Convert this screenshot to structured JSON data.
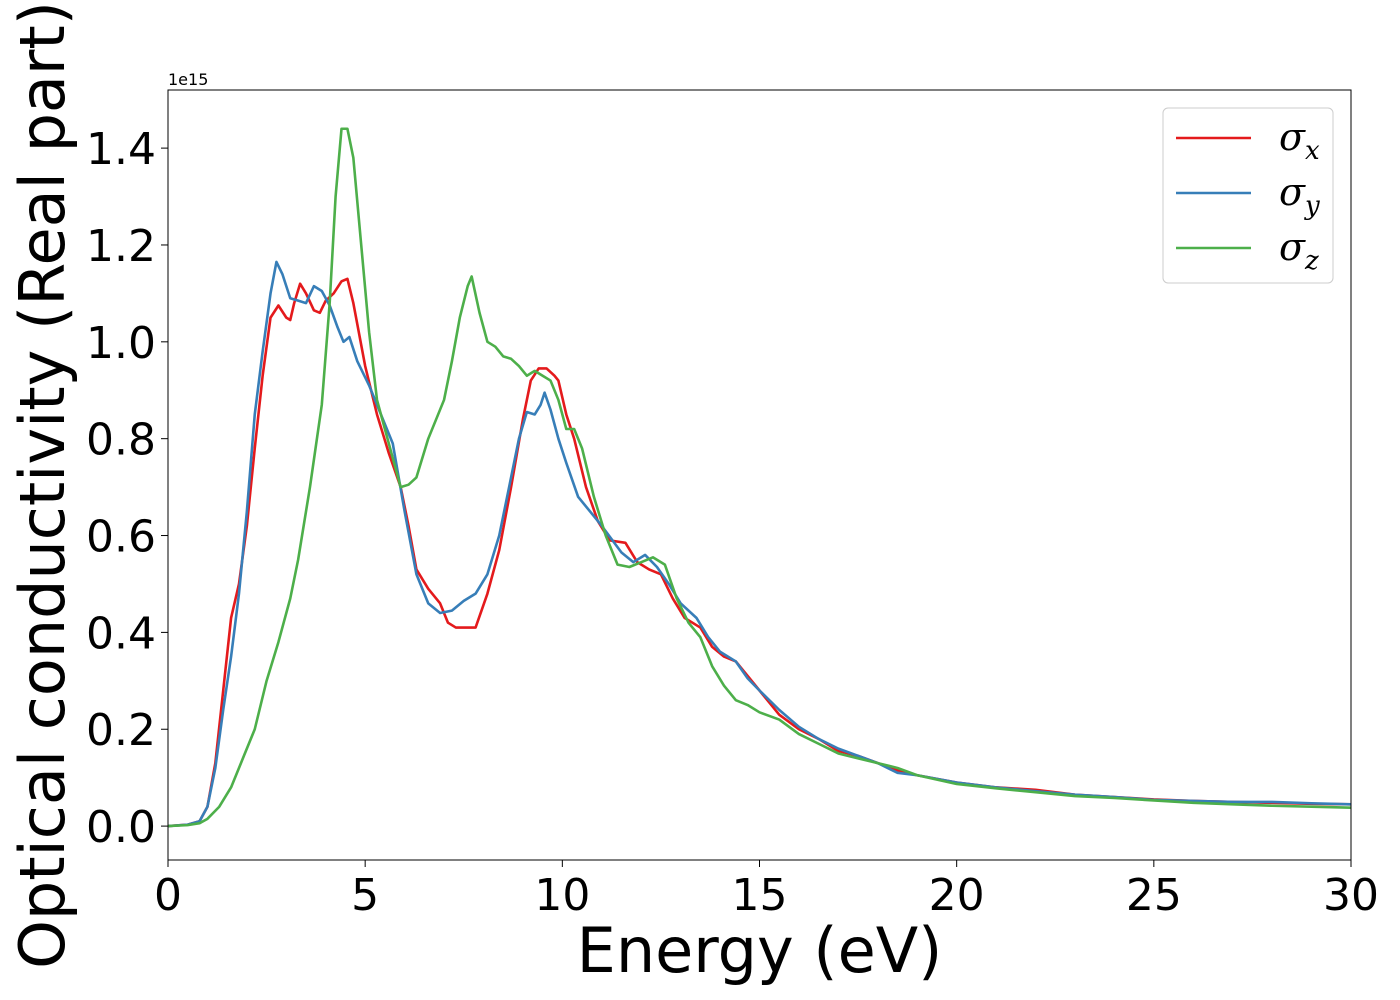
{
  "chart_data": {
    "type": "line",
    "title": "",
    "xlabel": "Energy (eV)",
    "ylabel": "Optical conductivity (Real part)",
    "y_offset_label": "1e15",
    "y_scale": 1000000000000000.0,
    "xlim": [
      0,
      30
    ],
    "ylim": [
      -0.07,
      1.52
    ],
    "x_ticks": [
      0,
      5,
      10,
      15,
      20,
      25,
      30
    ],
    "y_ticks": [
      0.0,
      0.2,
      0.4,
      0.6,
      0.8,
      1.0,
      1.2,
      1.4
    ],
    "grid": false,
    "legend_position": "top-right",
    "series": [
      {
        "name": "σx",
        "legend_base": "σ",
        "legend_sub": "x",
        "color": "#e41a1c",
        "points": [
          [
            0,
            0
          ],
          [
            0.5,
            0.003
          ],
          [
            0.8,
            0.01
          ],
          [
            1.0,
            0.04
          ],
          [
            1.2,
            0.13
          ],
          [
            1.4,
            0.28
          ],
          [
            1.6,
            0.43
          ],
          [
            1.8,
            0.5
          ],
          [
            2.0,
            0.62
          ],
          [
            2.2,
            0.78
          ],
          [
            2.4,
            0.93
          ],
          [
            2.6,
            1.05
          ],
          [
            2.8,
            1.075
          ],
          [
            3.0,
            1.05
          ],
          [
            3.1,
            1.045
          ],
          [
            3.2,
            1.08
          ],
          [
            3.35,
            1.12
          ],
          [
            3.5,
            1.1
          ],
          [
            3.7,
            1.065
          ],
          [
            3.85,
            1.06
          ],
          [
            4.0,
            1.085
          ],
          [
            4.2,
            1.1
          ],
          [
            4.4,
            1.125
          ],
          [
            4.55,
            1.13
          ],
          [
            4.7,
            1.08
          ],
          [
            5.0,
            0.95
          ],
          [
            5.3,
            0.85
          ],
          [
            5.6,
            0.77
          ],
          [
            5.9,
            0.7
          ],
          [
            6.1,
            0.62
          ],
          [
            6.3,
            0.53
          ],
          [
            6.6,
            0.49
          ],
          [
            6.9,
            0.46
          ],
          [
            7.1,
            0.42
          ],
          [
            7.3,
            0.41
          ],
          [
            7.6,
            0.41
          ],
          [
            7.8,
            0.41
          ],
          [
            8.1,
            0.48
          ],
          [
            8.4,
            0.57
          ],
          [
            8.7,
            0.7
          ],
          [
            9.0,
            0.84
          ],
          [
            9.2,
            0.92
          ],
          [
            9.4,
            0.945
          ],
          [
            9.6,
            0.945
          ],
          [
            9.8,
            0.93
          ],
          [
            9.9,
            0.92
          ],
          [
            10.1,
            0.85
          ],
          [
            10.3,
            0.8
          ],
          [
            10.6,
            0.7
          ],
          [
            10.9,
            0.63
          ],
          [
            11.2,
            0.59
          ],
          [
            11.6,
            0.585
          ],
          [
            11.9,
            0.545
          ],
          [
            12.2,
            0.53
          ],
          [
            12.5,
            0.52
          ],
          [
            12.8,
            0.47
          ],
          [
            13.1,
            0.43
          ],
          [
            13.5,
            0.41
          ],
          [
            13.8,
            0.37
          ],
          [
            14.1,
            0.35
          ],
          [
            14.4,
            0.34
          ],
          [
            14.7,
            0.31
          ],
          [
            15.0,
            0.28
          ],
          [
            15.5,
            0.23
          ],
          [
            16.0,
            0.2
          ],
          [
            16.5,
            0.18
          ],
          [
            17.0,
            0.155
          ],
          [
            17.5,
            0.145
          ],
          [
            18.0,
            0.13
          ],
          [
            18.5,
            0.115
          ],
          [
            19.0,
            0.105
          ],
          [
            20.0,
            0.09
          ],
          [
            21.0,
            0.08
          ],
          [
            22.0,
            0.075
          ],
          [
            23.0,
            0.065
          ],
          [
            24.0,
            0.06
          ],
          [
            25.0,
            0.055
          ],
          [
            26.0,
            0.052
          ],
          [
            27.0,
            0.05
          ],
          [
            28.0,
            0.048
          ],
          [
            29.0,
            0.046
          ],
          [
            30.0,
            0.045
          ]
        ]
      },
      {
        "name": "σy",
        "legend_base": "σ",
        "legend_sub": "y",
        "color": "#377eb8",
        "points": [
          [
            0,
            0
          ],
          [
            0.5,
            0.003
          ],
          [
            0.8,
            0.01
          ],
          [
            1.0,
            0.04
          ],
          [
            1.2,
            0.12
          ],
          [
            1.4,
            0.24
          ],
          [
            1.6,
            0.35
          ],
          [
            1.8,
            0.48
          ],
          [
            2.0,
            0.65
          ],
          [
            2.2,
            0.85
          ],
          [
            2.4,
            0.98
          ],
          [
            2.6,
            1.1
          ],
          [
            2.75,
            1.165
          ],
          [
            2.9,
            1.14
          ],
          [
            3.1,
            1.09
          ],
          [
            3.3,
            1.085
          ],
          [
            3.5,
            1.08
          ],
          [
            3.7,
            1.115
          ],
          [
            3.9,
            1.105
          ],
          [
            4.1,
            1.075
          ],
          [
            4.3,
            1.03
          ],
          [
            4.45,
            1.0
          ],
          [
            4.6,
            1.01
          ],
          [
            4.8,
            0.96
          ],
          [
            5.1,
            0.91
          ],
          [
            5.4,
            0.85
          ],
          [
            5.7,
            0.79
          ],
          [
            6.0,
            0.65
          ],
          [
            6.3,
            0.52
          ],
          [
            6.6,
            0.46
          ],
          [
            6.9,
            0.44
          ],
          [
            7.2,
            0.445
          ],
          [
            7.5,
            0.465
          ],
          [
            7.8,
            0.48
          ],
          [
            8.1,
            0.52
          ],
          [
            8.4,
            0.6
          ],
          [
            8.7,
            0.72
          ],
          [
            8.9,
            0.8
          ],
          [
            9.1,
            0.855
          ],
          [
            9.3,
            0.85
          ],
          [
            9.45,
            0.87
          ],
          [
            9.55,
            0.895
          ],
          [
            9.7,
            0.86
          ],
          [
            9.9,
            0.8
          ],
          [
            10.1,
            0.75
          ],
          [
            10.4,
            0.68
          ],
          [
            10.7,
            0.65
          ],
          [
            11.0,
            0.62
          ],
          [
            11.5,
            0.565
          ],
          [
            11.8,
            0.545
          ],
          [
            12.1,
            0.56
          ],
          [
            12.4,
            0.535
          ],
          [
            12.7,
            0.5
          ],
          [
            13.0,
            0.46
          ],
          [
            13.4,
            0.43
          ],
          [
            13.7,
            0.39
          ],
          [
            14.0,
            0.36
          ],
          [
            14.4,
            0.34
          ],
          [
            14.7,
            0.305
          ],
          [
            15.0,
            0.28
          ],
          [
            15.5,
            0.24
          ],
          [
            16.0,
            0.205
          ],
          [
            16.5,
            0.18
          ],
          [
            17.0,
            0.16
          ],
          [
            17.5,
            0.145
          ],
          [
            18.0,
            0.13
          ],
          [
            18.5,
            0.11
          ],
          [
            19.0,
            0.105
          ],
          [
            20.0,
            0.09
          ],
          [
            21.0,
            0.08
          ],
          [
            22.0,
            0.072
          ],
          [
            23.0,
            0.065
          ],
          [
            24.0,
            0.06
          ],
          [
            25.0,
            0.054
          ],
          [
            26.0,
            0.052
          ],
          [
            27.0,
            0.05
          ],
          [
            28.0,
            0.05
          ],
          [
            29.0,
            0.047
          ],
          [
            30.0,
            0.045
          ]
        ]
      },
      {
        "name": "σz",
        "legend_base": "σ",
        "legend_sub": "z",
        "color": "#4daf4a",
        "points": [
          [
            0,
            0
          ],
          [
            0.5,
            0.002
          ],
          [
            0.8,
            0.006
          ],
          [
            1.0,
            0.015
          ],
          [
            1.3,
            0.04
          ],
          [
            1.6,
            0.08
          ],
          [
            1.9,
            0.14
          ],
          [
            2.2,
            0.2
          ],
          [
            2.5,
            0.3
          ],
          [
            2.8,
            0.38
          ],
          [
            3.1,
            0.47
          ],
          [
            3.3,
            0.55
          ],
          [
            3.6,
            0.7
          ],
          [
            3.9,
            0.87
          ],
          [
            4.1,
            1.08
          ],
          [
            4.25,
            1.3
          ],
          [
            4.4,
            1.44
          ],
          [
            4.55,
            1.44
          ],
          [
            4.7,
            1.38
          ],
          [
            4.9,
            1.2
          ],
          [
            5.1,
            1.02
          ],
          [
            5.3,
            0.88
          ],
          [
            5.5,
            0.82
          ],
          [
            5.7,
            0.76
          ],
          [
            5.9,
            0.7
          ],
          [
            6.1,
            0.705
          ],
          [
            6.3,
            0.72
          ],
          [
            6.6,
            0.8
          ],
          [
            6.8,
            0.84
          ],
          [
            7.0,
            0.88
          ],
          [
            7.2,
            0.96
          ],
          [
            7.4,
            1.05
          ],
          [
            7.6,
            1.115
          ],
          [
            7.7,
            1.135
          ],
          [
            7.9,
            1.06
          ],
          [
            8.1,
            1.0
          ],
          [
            8.3,
            0.99
          ],
          [
            8.5,
            0.97
          ],
          [
            8.7,
            0.965
          ],
          [
            8.9,
            0.95
          ],
          [
            9.1,
            0.93
          ],
          [
            9.3,
            0.94
          ],
          [
            9.5,
            0.93
          ],
          [
            9.7,
            0.92
          ],
          [
            9.9,
            0.88
          ],
          [
            10.1,
            0.82
          ],
          [
            10.3,
            0.82
          ],
          [
            10.5,
            0.78
          ],
          [
            10.8,
            0.68
          ],
          [
            11.1,
            0.6
          ],
          [
            11.4,
            0.54
          ],
          [
            11.7,
            0.535
          ],
          [
            12.0,
            0.545
          ],
          [
            12.3,
            0.555
          ],
          [
            12.6,
            0.54
          ],
          [
            12.9,
            0.47
          ],
          [
            13.2,
            0.42
          ],
          [
            13.5,
            0.39
          ],
          [
            13.8,
            0.33
          ],
          [
            14.1,
            0.29
          ],
          [
            14.4,
            0.26
          ],
          [
            14.7,
            0.25
          ],
          [
            15.0,
            0.235
          ],
          [
            15.5,
            0.22
          ],
          [
            16.0,
            0.19
          ],
          [
            16.5,
            0.17
          ],
          [
            17.0,
            0.15
          ],
          [
            17.5,
            0.14
          ],
          [
            18.0,
            0.13
          ],
          [
            18.5,
            0.12
          ],
          [
            19.0,
            0.105
          ],
          [
            20.0,
            0.087
          ],
          [
            21.0,
            0.078
          ],
          [
            22.0,
            0.07
          ],
          [
            23.0,
            0.062
          ],
          [
            24.0,
            0.058
          ],
          [
            25.0,
            0.053
          ],
          [
            26.0,
            0.048
          ],
          [
            27.0,
            0.045
          ],
          [
            28.0,
            0.042
          ],
          [
            29.0,
            0.04
          ],
          [
            30.0,
            0.038
          ]
        ]
      }
    ]
  }
}
